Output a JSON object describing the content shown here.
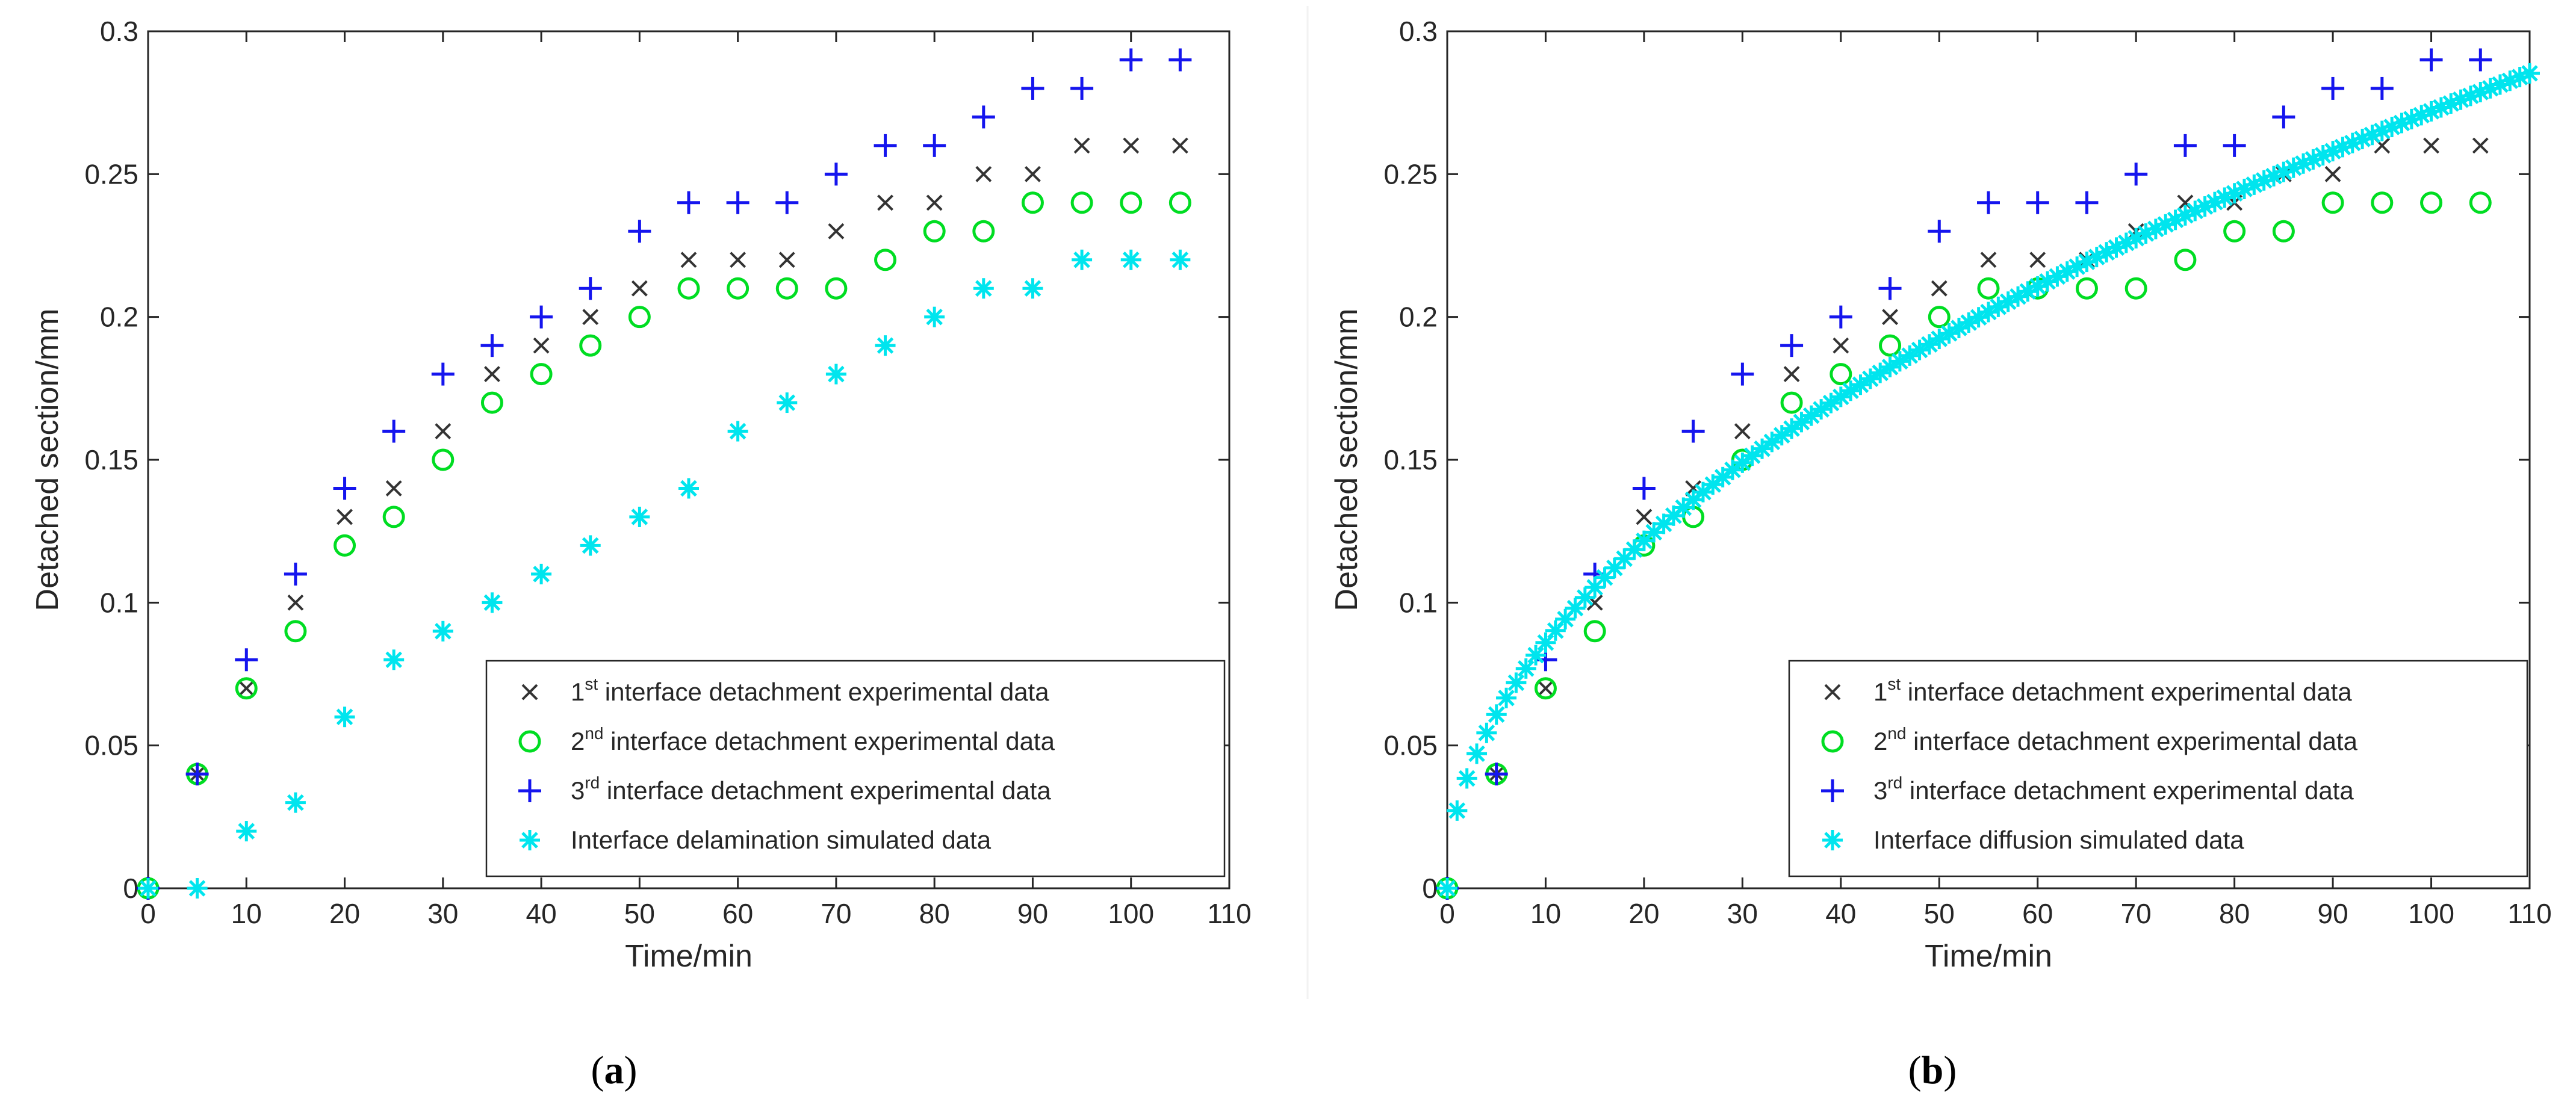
{
  "chart_data": [
    {
      "type": "scatter",
      "panel_label": "a",
      "xlabel": "Time/min",
      "ylabel": "Detached section/mm",
      "xlim": [
        0,
        110
      ],
      "ylim": [
        0,
        0.3
      ],
      "xticks": [
        "0",
        "10",
        "20",
        "30",
        "40",
        "50",
        "60",
        "70",
        "80",
        "90",
        "100",
        "110"
      ],
      "yticks": [
        "0",
        "0.05",
        "0.1",
        "0.15",
        "0.2",
        "0.25",
        "0.3"
      ],
      "legend_position": "bottom-right",
      "series": [
        {
          "name": "1st interface detachment experimental data",
          "label_pre": "1",
          "label_sup": "st",
          "label_post": " interface detachment experimental data",
          "marker": "x",
          "color": "#333333",
          "x": [
            0,
            5,
            10,
            15,
            20,
            25,
            30,
            35,
            40,
            45,
            50,
            55,
            60,
            65,
            70,
            75,
            80,
            85,
            90,
            95,
            100,
            105
          ],
          "y": [
            0,
            0.04,
            0.07,
            0.1,
            0.13,
            0.14,
            0.16,
            0.18,
            0.19,
            0.2,
            0.21,
            0.22,
            0.22,
            0.22,
            0.23,
            0.24,
            0.24,
            0.25,
            0.25,
            0.26,
            0.26,
            0.26
          ]
        },
        {
          "name": "2nd interface detachment experimental data",
          "label_pre": "2",
          "label_sup": "nd",
          "label_post": " interface detachment experimental data",
          "marker": "o",
          "color": "#00dd22",
          "x": [
            0,
            5,
            10,
            15,
            20,
            25,
            30,
            35,
            40,
            45,
            50,
            55,
            60,
            65,
            70,
            75,
            80,
            85,
            90,
            95,
            100,
            105
          ],
          "y": [
            0,
            0.04,
            0.07,
            0.09,
            0.12,
            0.13,
            0.15,
            0.17,
            0.18,
            0.19,
            0.2,
            0.21,
            0.21,
            0.21,
            0.21,
            0.22,
            0.23,
            0.23,
            0.24,
            0.24,
            0.24,
            0.24
          ]
        },
        {
          "name": "3rd interface detachment experimental data",
          "label_pre": "3",
          "label_sup": "rd",
          "label_post": " interface detachment experimental data",
          "marker": "+",
          "color": "#1515ee",
          "x": [
            0,
            5,
            10,
            15,
            20,
            25,
            30,
            35,
            40,
            45,
            50,
            55,
            60,
            65,
            70,
            75,
            80,
            85,
            90,
            95,
            100,
            105
          ],
          "y": [
            0,
            0.04,
            0.08,
            0.11,
            0.14,
            0.16,
            0.18,
            0.19,
            0.2,
            0.21,
            0.23,
            0.24,
            0.24,
            0.24,
            0.25,
            0.26,
            0.26,
            0.27,
            0.28,
            0.28,
            0.29,
            0.29
          ]
        },
        {
          "name": "Interface delamination simulated data",
          "label_pre": "Interface delamination simulated data",
          "label_sup": "",
          "label_post": "",
          "marker": "*",
          "color": "#00e5ee",
          "x": [
            0,
            5,
            10,
            15,
            20,
            25,
            30,
            35,
            40,
            45,
            50,
            55,
            60,
            65,
            70,
            75,
            80,
            85,
            90,
            95,
            100,
            105
          ],
          "y": [
            0,
            0,
            0.02,
            0.03,
            0.06,
            0.08,
            0.09,
            0.1,
            0.11,
            0.12,
            0.13,
            0.14,
            0.16,
            0.17,
            0.18,
            0.19,
            0.2,
            0.21,
            0.21,
            0.22,
            0.22,
            0.22
          ]
        }
      ]
    },
    {
      "type": "scatter",
      "panel_label": "b",
      "xlabel": "Time/min",
      "ylabel": "Detached section/mm",
      "xlim": [
        0,
        110
      ],
      "ylim": [
        0,
        0.3
      ],
      "xticks": [
        "0",
        "10",
        "20",
        "30",
        "40",
        "50",
        "60",
        "70",
        "80",
        "90",
        "100",
        "110"
      ],
      "yticks": [
        "0",
        "0.05",
        "0.1",
        "0.15",
        "0.2",
        "0.25",
        "0.3"
      ],
      "legend_position": "bottom-right",
      "series": [
        {
          "name": "1st interface detachment experimental data",
          "label_pre": "1",
          "label_sup": "st",
          "label_post": " interface detachment experimental data",
          "marker": "x",
          "color": "#333333",
          "x": [
            0,
            5,
            10,
            15,
            20,
            25,
            30,
            35,
            40,
            45,
            50,
            55,
            60,
            65,
            70,
            75,
            80,
            85,
            90,
            95,
            100,
            105
          ],
          "y": [
            0,
            0.04,
            0.07,
            0.1,
            0.13,
            0.14,
            0.16,
            0.18,
            0.19,
            0.2,
            0.21,
            0.22,
            0.22,
            0.22,
            0.23,
            0.24,
            0.24,
            0.25,
            0.25,
            0.26,
            0.26,
            0.26
          ]
        },
        {
          "name": "2nd interface detachment experimental data",
          "label_pre": "2",
          "label_sup": "nd",
          "label_post": " interface detachment experimental data",
          "marker": "o",
          "color": "#00dd22",
          "x": [
            0,
            5,
            10,
            15,
            20,
            25,
            30,
            35,
            40,
            45,
            50,
            55,
            60,
            65,
            70,
            75,
            80,
            85,
            90,
            95,
            100,
            105
          ],
          "y": [
            0,
            0.04,
            0.07,
            0.09,
            0.12,
            0.13,
            0.15,
            0.17,
            0.18,
            0.19,
            0.2,
            0.21,
            0.21,
            0.21,
            0.21,
            0.22,
            0.23,
            0.23,
            0.24,
            0.24,
            0.24,
            0.24
          ]
        },
        {
          "name": "3rd interface detachment experimental data",
          "label_pre": "3",
          "label_sup": "rd",
          "label_post": " interface detachment experimental data",
          "marker": "+",
          "color": "#1515ee",
          "x": [
            0,
            5,
            10,
            15,
            20,
            25,
            30,
            35,
            40,
            45,
            50,
            55,
            60,
            65,
            70,
            75,
            80,
            85,
            90,
            95,
            100,
            105
          ],
          "y": [
            0,
            0.04,
            0.08,
            0.11,
            0.14,
            0.16,
            0.18,
            0.19,
            0.2,
            0.21,
            0.23,
            0.24,
            0.24,
            0.24,
            0.25,
            0.26,
            0.26,
            0.27,
            0.28,
            0.28,
            0.29,
            0.29
          ]
        },
        {
          "name": "Interface diffusion simulated data",
          "label_pre": "Interface diffusion simulated data",
          "label_sup": "",
          "label_post": "",
          "marker": "*",
          "color": "#00e5ee",
          "model": "y = 0.0272 * sqrt(x)",
          "x_range": [
            0,
            110
          ],
          "x_step": 1
        }
      ]
    }
  ]
}
